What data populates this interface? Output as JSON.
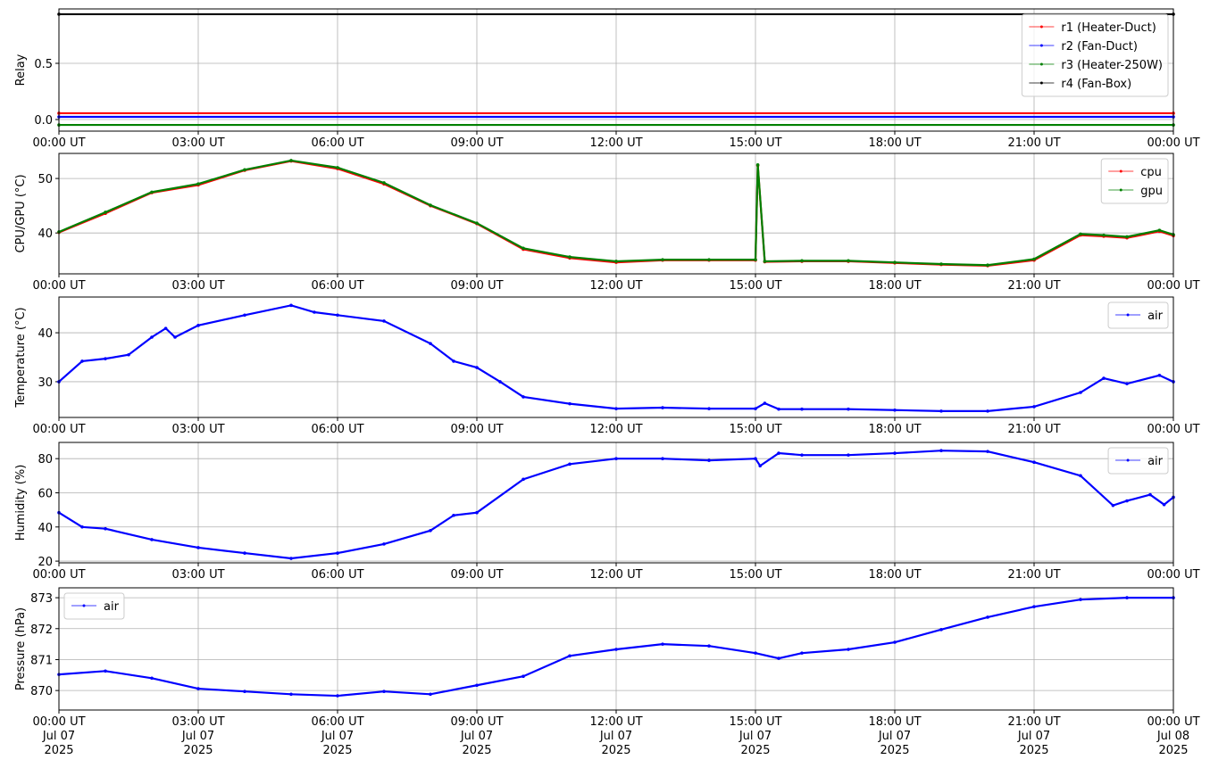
{
  "chart_data": [
    {
      "type": "line",
      "y_label": "Relay",
      "legend": "upper right",
      "grid": true,
      "xlim": [
        0,
        24
      ],
      "ylim": [
        -0.103,
        0.984
      ],
      "xticks": [
        {
          "value": 0,
          "label": "00:00 UT"
        },
        {
          "value": 3,
          "label": "03:00 UT"
        },
        {
          "value": 6,
          "label": "06:00 UT"
        },
        {
          "value": 9,
          "label": "09:00 UT"
        },
        {
          "value": 12,
          "label": "12:00 UT"
        },
        {
          "value": 15,
          "label": "15:00 UT"
        },
        {
          "value": 18,
          "label": "18:00 UT"
        },
        {
          "value": 21,
          "label": "21:00 UT"
        },
        {
          "value": 24,
          "label": "00:00 UT"
        }
      ],
      "yticks": [
        {
          "value": 0,
          "label": "0.0"
        },
        0.5
      ],
      "x": [
        0,
        24
      ],
      "series": [
        {
          "name": "r1 (Heater-Duct)",
          "color": "#ff0000",
          "values": [
            0.056,
            0.056
          ]
        },
        {
          "name": "r2 (Fan-Duct)",
          "color": "#0000ff",
          "values": [
            0.024,
            0.024
          ]
        },
        {
          "name": "r3 (Heater-250W)",
          "color": "#008000",
          "values": [
            -0.048,
            -0.048
          ]
        },
        {
          "name": "r4 (Fan-Box)",
          "color": "#000000",
          "values": [
            0.937,
            0.937
          ]
        }
      ]
    },
    {
      "type": "line",
      "y_label": "CPU/GPU (°C)",
      "legend": "upper right",
      "grid": true,
      "xlim": [
        0,
        24
      ],
      "ylim": [
        32.5,
        54.6
      ],
      "xticks": [
        {
          "value": 0,
          "label": "00:00 UT"
        },
        {
          "value": 3,
          "label": "03:00 UT"
        },
        {
          "value": 6,
          "label": "06:00 UT"
        },
        {
          "value": 9,
          "label": "09:00 UT"
        },
        {
          "value": 12,
          "label": "12:00 UT"
        },
        {
          "value": 15,
          "label": "15:00 UT"
        },
        {
          "value": 18,
          "label": "18:00 UT"
        },
        {
          "value": 21,
          "label": "21:00 UT"
        },
        {
          "value": 24,
          "label": "00:00 UT"
        }
      ],
      "yticks": [
        40,
        50
      ],
      "x": [
        0,
        1,
        2,
        3,
        4,
        5,
        6,
        7,
        8,
        9,
        10,
        11,
        12,
        13,
        14,
        15,
        15.05,
        15.2,
        16,
        17,
        18,
        19,
        20,
        21,
        22,
        22.5,
        23,
        23.7,
        24
      ],
      "series": [
        {
          "name": "cpu",
          "color": "#ff0000",
          "values": [
            40.1,
            43.6,
            47.4,
            48.8,
            51.5,
            53.2,
            51.8,
            49.0,
            45.0,
            41.7,
            37.0,
            35.4,
            34.6,
            35.0,
            35.0,
            35.0,
            52.4,
            34.7,
            34.8,
            34.8,
            34.5,
            34.2,
            34.0,
            35.0,
            39.6,
            39.4,
            39.1,
            40.3,
            39.5
          ]
        },
        {
          "name": "gpu",
          "color": "#008000",
          "values": [
            40.2,
            43.8,
            47.5,
            49.0,
            51.6,
            53.3,
            52.0,
            49.2,
            45.1,
            41.8,
            37.2,
            35.6,
            34.8,
            35.1,
            35.1,
            35.1,
            52.5,
            34.8,
            34.9,
            34.9,
            34.6,
            34.3,
            34.1,
            35.2,
            39.8,
            39.6,
            39.3,
            40.5,
            39.7
          ]
        }
      ]
    },
    {
      "type": "line",
      "y_label": "Temperature (°C)",
      "legend": "upper right",
      "grid": true,
      "xlim": [
        0,
        24
      ],
      "ylim": [
        22.7,
        47.3
      ],
      "xticks": [
        {
          "value": 0,
          "label": "00:00 UT"
        },
        {
          "value": 3,
          "label": "03:00 UT"
        },
        {
          "value": 6,
          "label": "06:00 UT"
        },
        {
          "value": 9,
          "label": "09:00 UT"
        },
        {
          "value": 12,
          "label": "12:00 UT"
        },
        {
          "value": 15,
          "label": "15:00 UT"
        },
        {
          "value": 18,
          "label": "18:00 UT"
        },
        {
          "value": 21,
          "label": "21:00 UT"
        },
        {
          "value": 24,
          "label": "00:00 UT"
        }
      ],
      "yticks": [
        30,
        40
      ],
      "x": [
        0,
        0.5,
        1,
        1.5,
        2,
        2.3,
        2.5,
        3,
        4,
        5,
        5.5,
        6,
        7,
        8,
        8.5,
        9,
        9.5,
        10,
        11,
        12,
        13,
        14,
        15,
        15.2,
        15.5,
        16,
        17,
        18,
        19,
        20,
        21,
        22,
        22.5,
        23,
        23.7,
        24
      ],
      "series": [
        {
          "name": "air",
          "color": "#0000ff",
          "values": [
            30.0,
            34.2,
            34.7,
            35.5,
            39.1,
            40.9,
            39.1,
            41.5,
            43.6,
            45.6,
            44.2,
            43.6,
            42.4,
            37.8,
            34.2,
            32.9,
            30.0,
            26.9,
            25.5,
            24.5,
            24.7,
            24.5,
            24.5,
            25.6,
            24.4,
            24.4,
            24.4,
            24.2,
            24.0,
            24.0,
            24.9,
            27.8,
            30.7,
            29.6,
            31.3,
            30.0
          ]
        }
      ]
    },
    {
      "type": "line",
      "y_label": "Humidity (%)",
      "legend": "upper right",
      "grid": true,
      "xlim": [
        0,
        24
      ],
      "ylim": [
        19.0,
        89.5
      ],
      "xticks": [
        {
          "value": 0,
          "label": "00:00 UT"
        },
        {
          "value": 3,
          "label": "03:00 UT"
        },
        {
          "value": 6,
          "label": "06:00 UT"
        },
        {
          "value": 9,
          "label": "09:00 UT"
        },
        {
          "value": 12,
          "label": "12:00 UT"
        },
        {
          "value": 15,
          "label": "15:00 UT"
        },
        {
          "value": 18,
          "label": "18:00 UT"
        },
        {
          "value": 21,
          "label": "21:00 UT"
        },
        {
          "value": 24,
          "label": "00:00 UT"
        }
      ],
      "yticks": [
        20,
        40,
        60,
        80
      ],
      "x": [
        0,
        0.5,
        1,
        2,
        3,
        4,
        5,
        6,
        7,
        8,
        8.5,
        9,
        10,
        11,
        12,
        13,
        14,
        15,
        15.1,
        15.5,
        16,
        17,
        18,
        19,
        20,
        21,
        22,
        22.7,
        23,
        23.5,
        23.8,
        24
      ],
      "series": [
        {
          "name": "air",
          "color": "#0000ff",
          "values": [
            48.4,
            40.0,
            39.0,
            32.6,
            27.9,
            24.7,
            21.6,
            24.7,
            30.0,
            37.9,
            46.8,
            48.4,
            67.9,
            76.8,
            80.0,
            80.0,
            79.0,
            80.0,
            75.8,
            83.2,
            82.1,
            82.1,
            83.2,
            84.7,
            84.2,
            77.9,
            70.0,
            52.6,
            55.3,
            58.9,
            53.1,
            57.4
          ]
        }
      ]
    },
    {
      "type": "line",
      "y_label": "Pressure (hPa)",
      "legend": "upper left",
      "grid": true,
      "xlim": [
        0,
        24
      ],
      "ylim": [
        869.37,
        873.32
      ],
      "xticks": [
        {
          "value": 0,
          "label": "00:00 UT\nJul 07\n2025"
        },
        {
          "value": 3,
          "label": "03:00 UT\nJul 07\n2025"
        },
        {
          "value": 6,
          "label": "06:00 UT\nJul 07\n2025"
        },
        {
          "value": 9,
          "label": "09:00 UT\nJul 07\n2025"
        },
        {
          "value": 12,
          "label": "12:00 UT\nJul 07\n2025"
        },
        {
          "value": 15,
          "label": "15:00 UT\nJul 07\n2025"
        },
        {
          "value": 18,
          "label": "18:00 UT\nJul 07\n2025"
        },
        {
          "value": 21,
          "label": "21:00 UT\nJul 07\n2025"
        },
        {
          "value": 24,
          "label": "00:00 UT\nJul 08\n2025"
        }
      ],
      "yticks": [
        870,
        871,
        872,
        873
      ],
      "x": [
        0,
        1,
        2,
        3,
        4,
        5,
        6,
        7,
        8,
        9,
        10,
        11,
        12,
        13,
        14,
        15,
        15.5,
        16,
        17,
        18,
        19,
        20,
        21,
        22,
        23,
        24
      ],
      "series": [
        {
          "name": "air",
          "color": "#0000ff",
          "values": [
            870.52,
            870.63,
            870.4,
            870.06,
            869.97,
            869.88,
            869.83,
            869.97,
            869.88,
            870.17,
            870.46,
            871.12,
            871.33,
            871.5,
            871.44,
            871.21,
            871.04,
            871.21,
            871.33,
            871.56,
            871.97,
            872.37,
            872.71,
            872.94,
            873.0,
            873.0
          ]
        }
      ]
    }
  ]
}
